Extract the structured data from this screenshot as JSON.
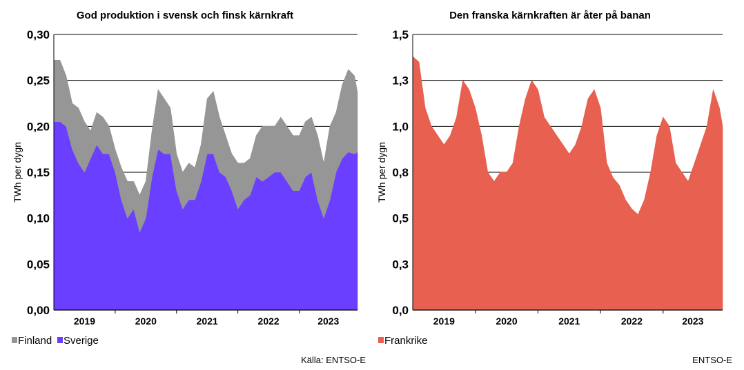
{
  "chart_data": [
    {
      "type": "area",
      "stacked": true,
      "title": "God produktion i svensk och finsk kärnkraft",
      "ylabel": "TWh per dygn",
      "ylim": [
        0,
        0.3
      ],
      "yticks": [
        "0,00",
        "0,05",
        "0,10",
        "0,15",
        "0,20",
        "0,25",
        "0,30"
      ],
      "x_categories": [
        "2019",
        "2020",
        "2021",
        "2022",
        "2023"
      ],
      "grid": true,
      "legend_position": "bottom-left",
      "x": [
        2019.0,
        2019.1,
        2019.2,
        2019.3,
        2019.4,
        2019.5,
        2019.6,
        2019.7,
        2019.8,
        2019.9,
        2020.0,
        2020.1,
        2020.2,
        2020.3,
        2020.4,
        2020.5,
        2020.6,
        2020.7,
        2020.8,
        2020.9,
        2021.0,
        2021.1,
        2021.2,
        2021.3,
        2021.4,
        2021.5,
        2021.6,
        2021.7,
        2021.8,
        2021.9,
        2022.0,
        2022.1,
        2022.2,
        2022.3,
        2022.4,
        2022.5,
        2022.6,
        2022.7,
        2022.8,
        2022.9,
        2023.0,
        2023.1,
        2023.2,
        2023.3,
        2023.4,
        2023.5,
        2023.6,
        2023.7,
        2023.8,
        2023.9,
        2023.95
      ],
      "series": [
        {
          "name": "Sverige",
          "color": "#6a3fff",
          "values": [
            0.205,
            0.205,
            0.2,
            0.175,
            0.16,
            0.15,
            0.165,
            0.18,
            0.17,
            0.17,
            0.15,
            0.12,
            0.1,
            0.11,
            0.085,
            0.1,
            0.145,
            0.175,
            0.17,
            0.17,
            0.13,
            0.11,
            0.12,
            0.12,
            0.14,
            0.17,
            0.17,
            0.15,
            0.145,
            0.13,
            0.11,
            0.12,
            0.125,
            0.145,
            0.14,
            0.145,
            0.15,
            0.15,
            0.14,
            0.13,
            0.13,
            0.145,
            0.15,
            0.12,
            0.1,
            0.12,
            0.15,
            0.165,
            0.172,
            0.17,
            0.172
          ]
        },
        {
          "name": "Finland",
          "color": "#969696",
          "values": [
            0.067,
            0.067,
            0.055,
            0.05,
            0.06,
            0.055,
            0.03,
            0.035,
            0.04,
            0.03,
            0.025,
            0.035,
            0.04,
            0.03,
            0.04,
            0.04,
            0.05,
            0.065,
            0.06,
            0.05,
            0.04,
            0.04,
            0.04,
            0.035,
            0.04,
            0.06,
            0.068,
            0.06,
            0.045,
            0.04,
            0.05,
            0.04,
            0.04,
            0.045,
            0.06,
            0.055,
            0.05,
            0.06,
            0.06,
            0.06,
            0.06,
            0.06,
            0.06,
            0.07,
            0.06,
            0.08,
            0.065,
            0.08,
            0.09,
            0.085,
            0.065
          ]
        }
      ],
      "source": "Källa: ENTSO-E"
    },
    {
      "type": "area",
      "title": "Den franska kärnkraften är åter på banan",
      "ylabel": "TWh per dygn",
      "ylim": [
        0,
        1.5
      ],
      "yticks": [
        "0,0",
        "0,3",
        "0,5",
        "0,8",
        "1,0",
        "1,3",
        "1,5"
      ],
      "x_categories": [
        "2019",
        "2020",
        "2021",
        "2022",
        "2023"
      ],
      "grid": true,
      "legend_position": "bottom-left",
      "x": [
        2019.0,
        2019.1,
        2019.2,
        2019.3,
        2019.4,
        2019.5,
        2019.6,
        2019.7,
        2019.8,
        2019.9,
        2020.0,
        2020.1,
        2020.2,
        2020.3,
        2020.4,
        2020.5,
        2020.6,
        2020.7,
        2020.8,
        2020.9,
        2021.0,
        2021.1,
        2021.2,
        2021.3,
        2021.4,
        2021.5,
        2021.6,
        2021.7,
        2021.8,
        2021.9,
        2022.0,
        2022.1,
        2022.2,
        2022.3,
        2022.4,
        2022.5,
        2022.6,
        2022.7,
        2022.8,
        2022.9,
        2023.0,
        2023.1,
        2023.2,
        2023.3,
        2023.4,
        2023.5,
        2023.6,
        2023.7,
        2023.8,
        2023.9,
        2023.95
      ],
      "series": [
        {
          "name": "Frankrike",
          "color": "#e8604f",
          "values": [
            1.38,
            1.35,
            1.1,
            1.0,
            0.95,
            0.9,
            0.95,
            1.05,
            1.25,
            1.2,
            1.1,
            0.95,
            0.75,
            0.7,
            0.75,
            0.75,
            0.8,
            1.0,
            1.15,
            1.25,
            1.2,
            1.05,
            1.0,
            0.95,
            0.9,
            0.85,
            0.9,
            1.0,
            1.15,
            1.2,
            1.1,
            0.8,
            0.72,
            0.68,
            0.6,
            0.55,
            0.52,
            0.6,
            0.75,
            0.95,
            1.05,
            1.0,
            0.8,
            0.75,
            0.7,
            0.8,
            0.9,
            1.0,
            1.2,
            1.1,
            1.0
          ]
        }
      ],
      "source": "ENTSO-E"
    }
  ]
}
